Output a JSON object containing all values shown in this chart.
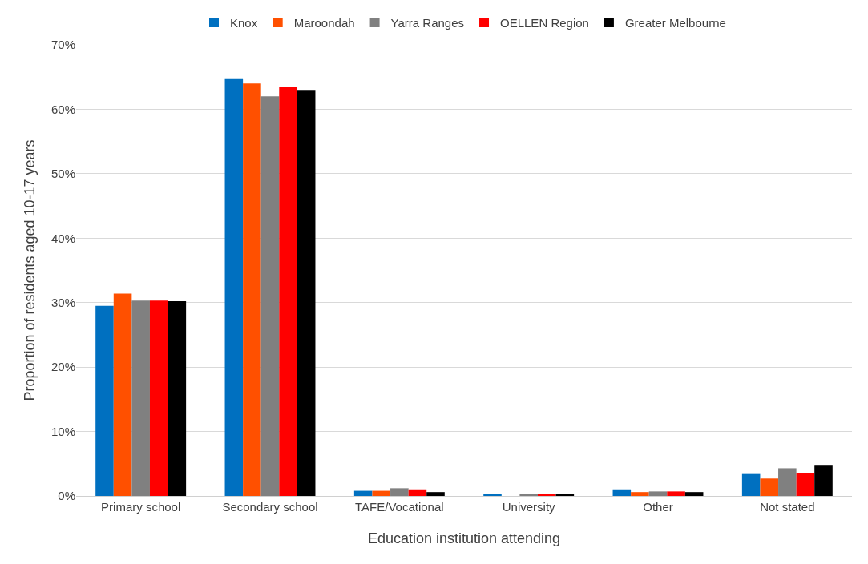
{
  "chart_data": {
    "type": "bar",
    "xlabel": "Education institution attending",
    "ylabel": "Proportion of residents aged 10-17 years",
    "categories": [
      "Primary school",
      "Secondary school",
      "TAFE/Vocational",
      "University",
      "Other",
      "Not stated"
    ],
    "series": [
      {
        "name": "Knox",
        "color": "#0070c0",
        "values": [
          29.5,
          64.8,
          0.8,
          0.2,
          0.9,
          3.4
        ]
      },
      {
        "name": "Maroondah",
        "color": "#ff5000",
        "values": [
          31.4,
          64.0,
          0.8,
          0.0,
          0.6,
          2.7
        ]
      },
      {
        "name": "Yarra Ranges",
        "color": "#808080",
        "values": [
          30.3,
          62.0,
          1.2,
          0.2,
          0.7,
          4.3
        ]
      },
      {
        "name": "OELLEN Region",
        "color": "#ff0000",
        "values": [
          30.3,
          63.5,
          0.9,
          0.2,
          0.7,
          3.5
        ]
      },
      {
        "name": "Greater Melbourne",
        "color": "#000000",
        "values": [
          30.2,
          63.0,
          0.6,
          0.2,
          0.6,
          4.7
        ]
      }
    ],
    "ylim": [
      0,
      70
    ],
    "yticks": [
      {
        "value": 0,
        "label": "0%"
      },
      {
        "value": 10,
        "label": "10%"
      },
      {
        "value": 20,
        "label": "20%"
      },
      {
        "value": 30,
        "label": "30%"
      },
      {
        "value": 40,
        "label": "40%"
      },
      {
        "value": 50,
        "label": "50%"
      },
      {
        "value": 60,
        "label": "60%"
      },
      {
        "value": 70,
        "label": "70%"
      }
    ],
    "grid": "y",
    "legend": "top"
  }
}
